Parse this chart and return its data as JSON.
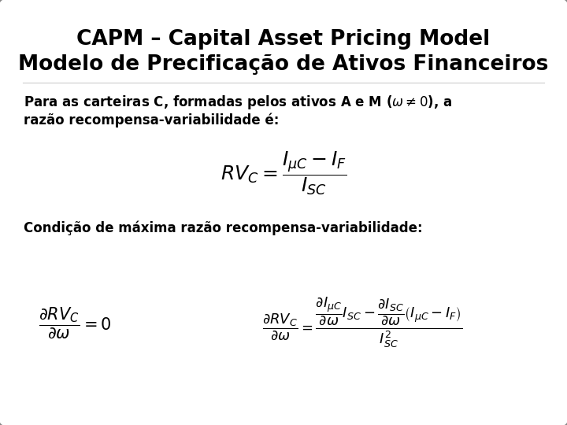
{
  "title_line1": "CAPM – Capital Asset Pricing Model",
  "title_line2": "Modelo de Precificação de Ativos Financeiros",
  "para1_line1": "Para as carteiras C, formadas pelos ativos A e M ($\\omega \\neq 0$), a",
  "para1_line2": "razão recompensa-variabilidade é:",
  "formula1": "$RV_C = \\dfrac{I_{\\mu C} - I_F}{I_{SC}}$",
  "para2": "Condição de máxima razão recompensa-variabilidade:",
  "formula2a": "$\\dfrac{\\partial RV_C}{\\partial \\omega} = 0$",
  "formula2b": "$\\dfrac{\\partial RV_C}{\\partial \\omega} = \\dfrac{\\dfrac{\\partial I_{\\mu C}}{\\partial \\omega} I_{SC} - \\dfrac{\\partial I_{SC}}{\\partial \\omega}\\left(I_{\\mu C} - I_F\\right)}{I_{SC}^2}$",
  "bg_color": "#d4d4d4",
  "box_color": "#ffffff",
  "border_color": "#888888",
  "title_fontsize": 19,
  "text_fontsize": 12,
  "formula1_fontsize": 14,
  "formula2_fontsize": 12
}
